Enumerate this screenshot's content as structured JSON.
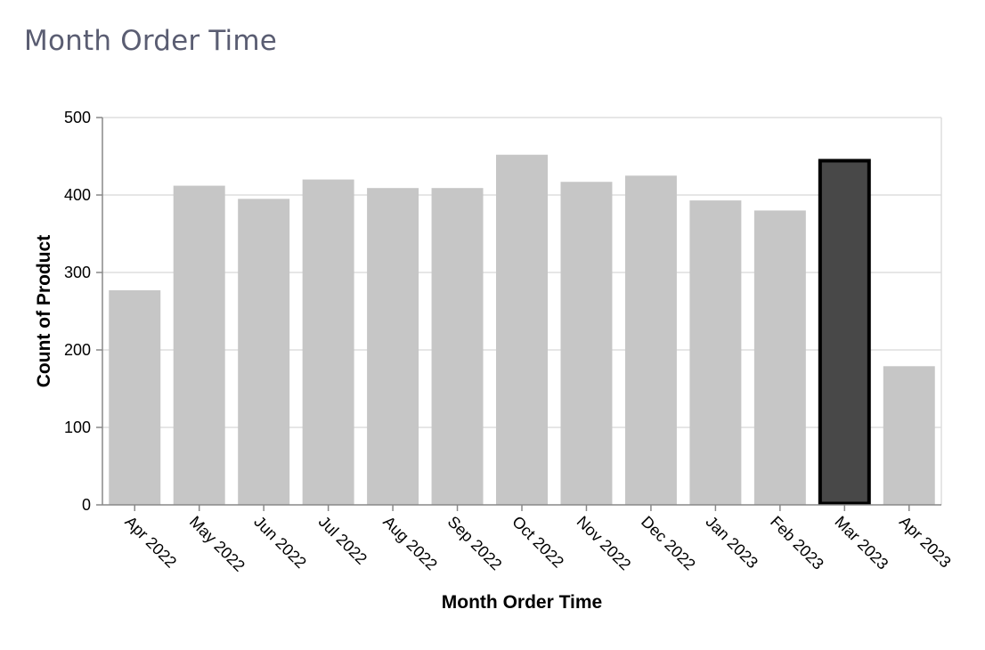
{
  "panel": {
    "title": "Month Order Time"
  },
  "chart_data": {
    "type": "bar",
    "title": "",
    "xlabel": "Month Order Time",
    "ylabel": "Count of Product",
    "categories": [
      "Apr 2022",
      "May 2022",
      "Jun 2022",
      "Jul 2022",
      "Aug 2022",
      "Sep 2022",
      "Oct 2022",
      "Nov 2022",
      "Dec 2022",
      "Jan 2023",
      "Feb 2023",
      "Mar 2023",
      "Apr 2023"
    ],
    "values": [
      277,
      412,
      395,
      420,
      409,
      409,
      452,
      417,
      425,
      393,
      380,
      446,
      179
    ],
    "ylim": [
      0,
      500
    ],
    "yticks": [
      0,
      100,
      200,
      300,
      400,
      500
    ],
    "grid": true,
    "selected_category": "Mar 2023",
    "colors": {
      "bar": "#c6c6c6",
      "bar_selected": "#484848",
      "selected_outline": "#000000",
      "grid": "#dddddd",
      "axis": "#888888"
    }
  }
}
